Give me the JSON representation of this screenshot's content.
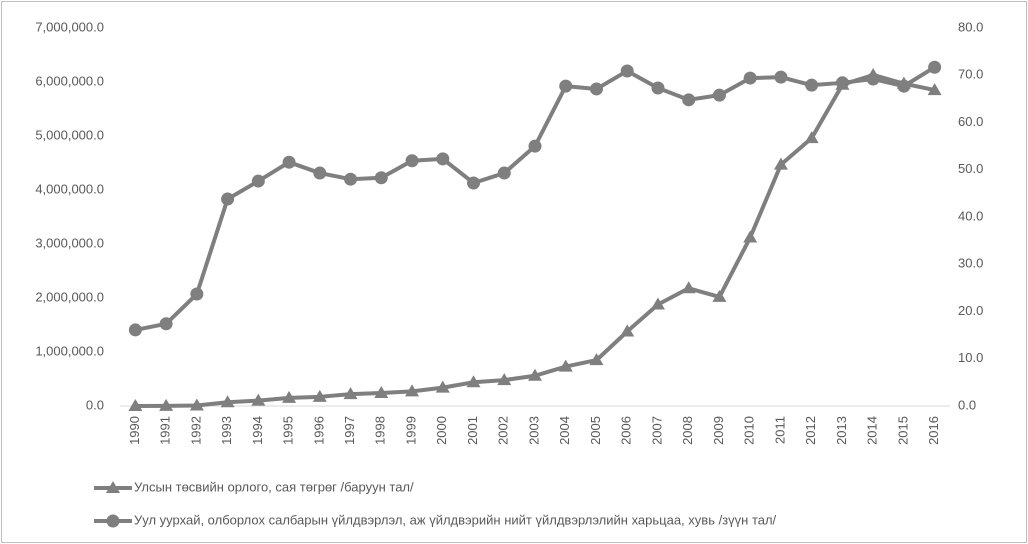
{
  "chart_data": {
    "type": "line",
    "categories": [
      "1990",
      "1991",
      "1992",
      "1993",
      "1994",
      "1995",
      "1996",
      "1997",
      "1998",
      "1999",
      "2000",
      "2001",
      "2002",
      "2003",
      "2004",
      "2005",
      "2006",
      "2007",
      "2008",
      "2009",
      "2010",
      "2011",
      "2012",
      "2013",
      "2014",
      "2015",
      "2016"
    ],
    "series": [
      {
        "name": "Улсын төсвийн орлого, сая төгрөг /баруун тал/",
        "color": "#7f7f7f",
        "marker": "triangle",
        "axis": "y",
        "values": [
          0,
          2000,
          10000,
          70000,
          100000,
          150000,
          170000,
          220000,
          240000,
          270000,
          340000,
          440000,
          480000,
          560000,
          730000,
          850000,
          1380000,
          1880000,
          2180000,
          2020000,
          3120000,
          4470000,
          4960000,
          5950000,
          6130000,
          5970000,
          5850000
        ]
      },
      {
        "name": "Уул уурхай, олборлох салбарын үйлдвэрлэл, аж үйлдвэрийн нийт үйлдвэрлэлийн харьцаа, хувь /зүүн тал/",
        "color": "#7f7f7f",
        "marker": "circle",
        "axis": "y2",
        "values": [
          16.1,
          17.4,
          23.7,
          43.8,
          47.6,
          51.6,
          49.3,
          48.0,
          48.3,
          51.9,
          52.3,
          47.2,
          49.3,
          55.0,
          67.7,
          67.1,
          70.9,
          67.3,
          64.8,
          65.8,
          69.4,
          69.6,
          67.9,
          68.4,
          69.2,
          67.7,
          71.7
        ]
      }
    ],
    "ylim": [
      0,
      7000000
    ],
    "yticks": [
      {
        "value": 0,
        "label": "0.0"
      },
      {
        "value": 1000000,
        "label": "1,000,000.0"
      },
      {
        "value": 2000000,
        "label": "2,000,000.0"
      },
      {
        "value": 3000000,
        "label": "3,000,000.0"
      },
      {
        "value": 4000000,
        "label": "4,000,000.0"
      },
      {
        "value": 5000000,
        "label": "5,000,000.0"
      },
      {
        "value": 6000000,
        "label": "6,000,000.0"
      },
      {
        "value": 7000000,
        "label": "7,000,000.0"
      }
    ],
    "y2lim": [
      0,
      80
    ],
    "y2ticks": [
      {
        "value": 0,
        "label": "0.0"
      },
      {
        "value": 10,
        "label": "10.0"
      },
      {
        "value": 20,
        "label": "20.0"
      },
      {
        "value": 30,
        "label": "30.0"
      },
      {
        "value": 40,
        "label": "40.0"
      },
      {
        "value": 50,
        "label": "50.0"
      },
      {
        "value": 60,
        "label": "60.0"
      },
      {
        "value": 70,
        "label": "70.0"
      },
      {
        "value": 80,
        "label": "80.0"
      }
    ],
    "grid": false
  }
}
